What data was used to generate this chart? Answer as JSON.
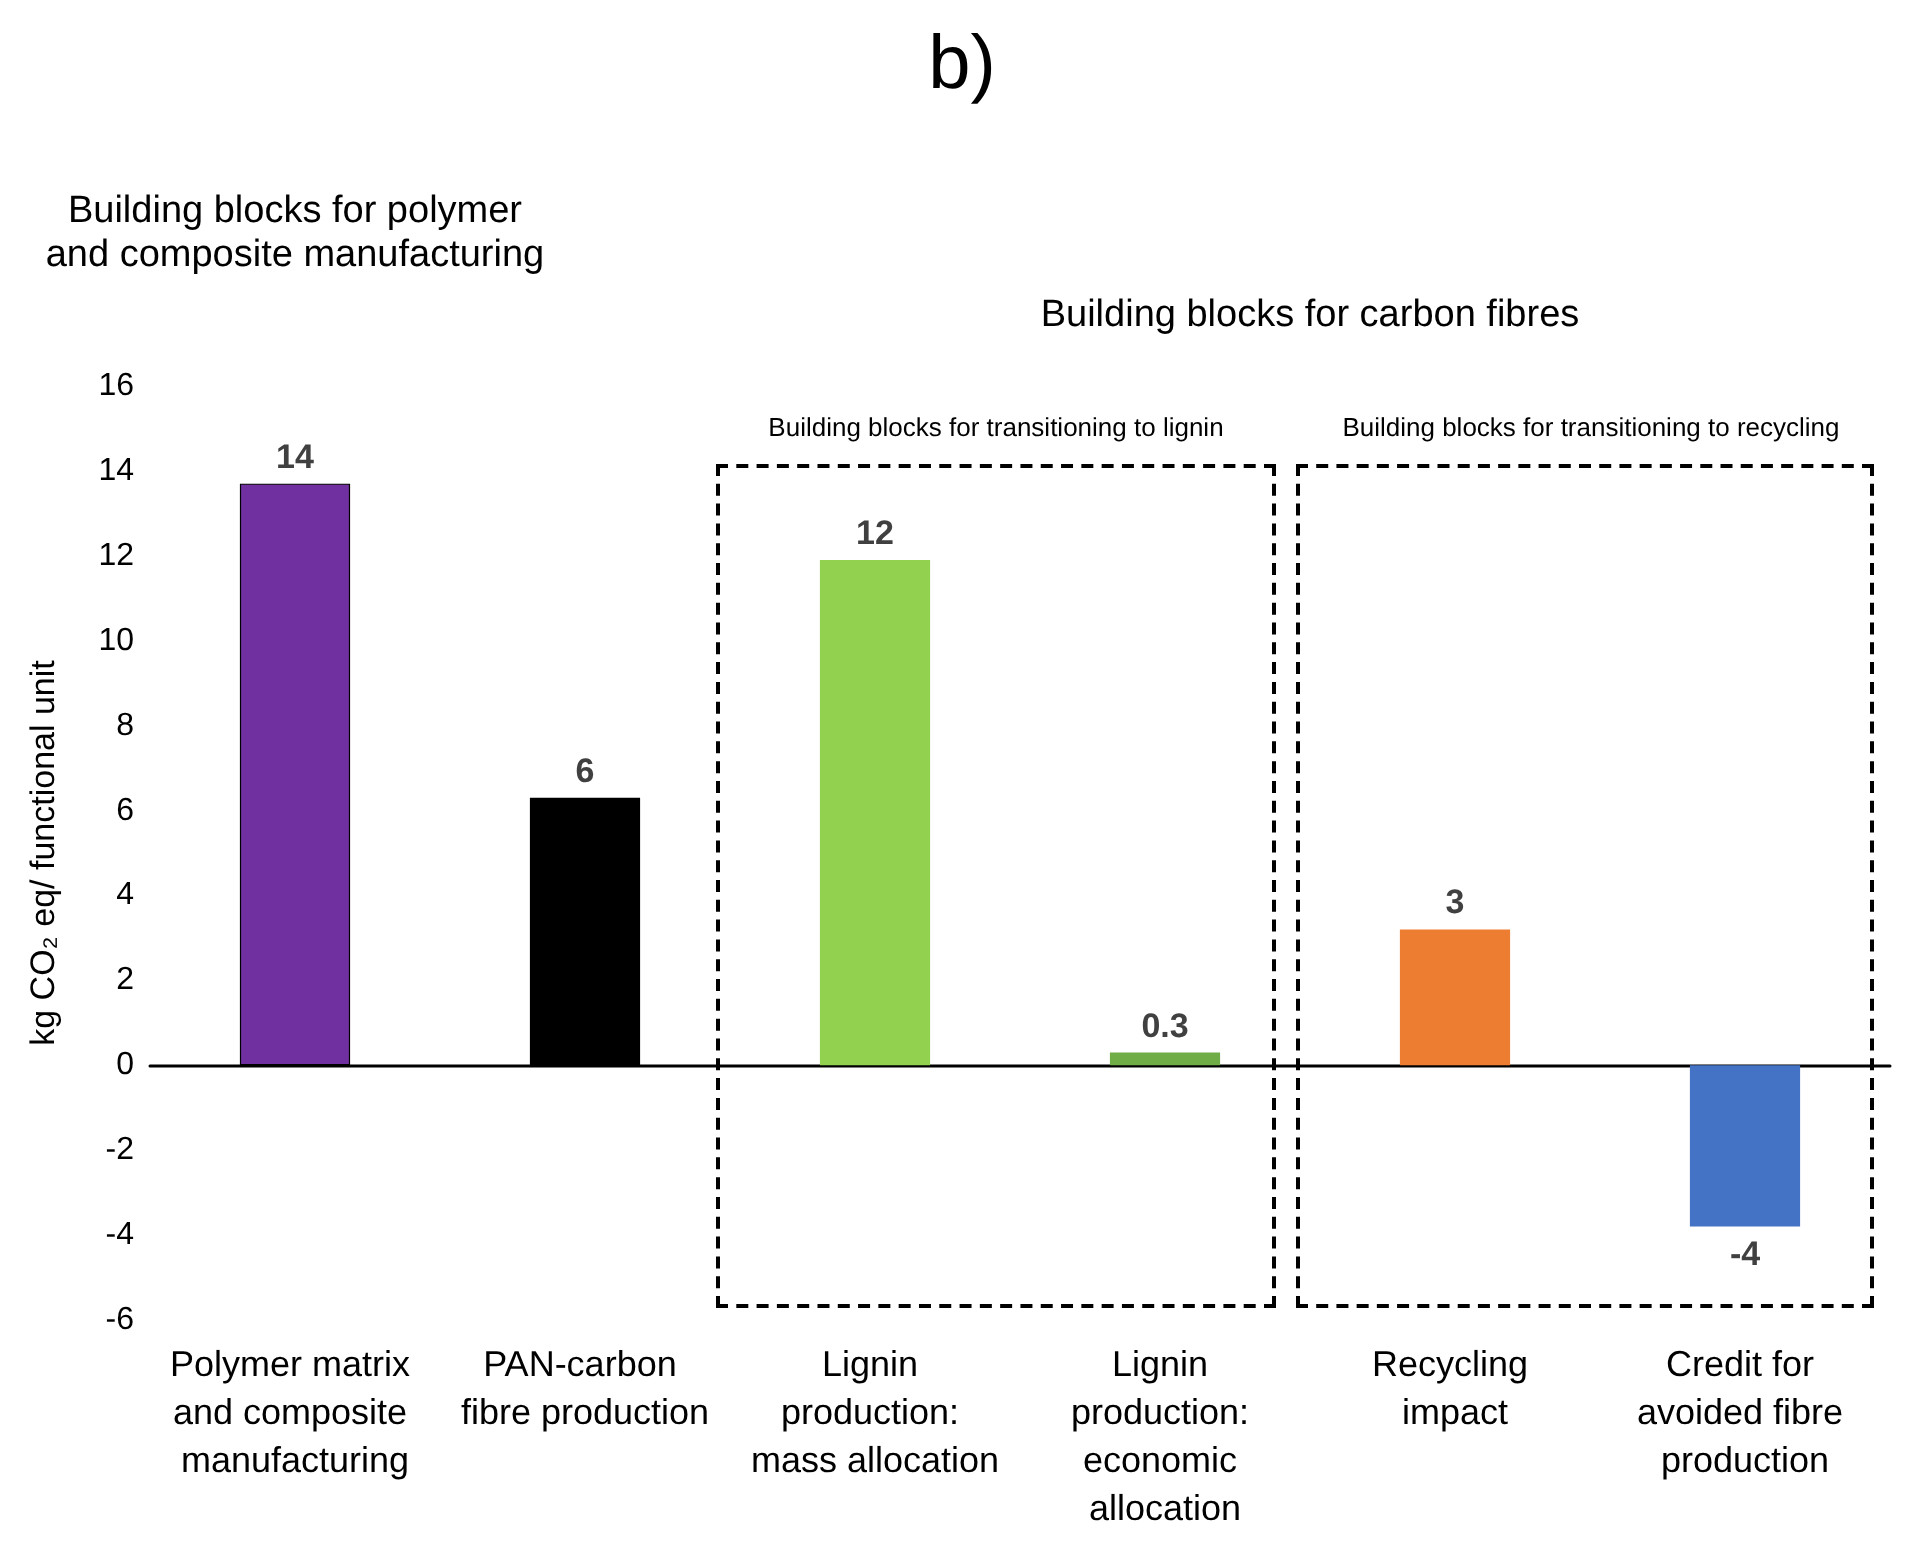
{
  "chart_data": {
    "type": "bar",
    "title": "b)",
    "ylabel": "kg CO₂ eq/ functional unit",
    "categories": [
      "Polymer matrix and composite manufacturing",
      "PAN-carbon fibre production",
      "Lignin production: mass allocation",
      "Lignin production: economic allocation",
      "Recycling impact",
      "Credit for avoided fibre production"
    ],
    "values": [
      13.7,
      6.3,
      11.9,
      0.3,
      3.2,
      -3.8
    ],
    "value_labels": [
      "14",
      "6",
      "12",
      "0.3",
      "3",
      "-4"
    ],
    "colors": [
      "#7030a0",
      "#000000",
      "#92d050",
      "#70ad47",
      "#ed7d31",
      "#4472c4"
    ],
    "ylim": [
      -6,
      16
    ],
    "yticks": [
      -6,
      -4,
      -2,
      0,
      2,
      4,
      6,
      8,
      10,
      12,
      14,
      16
    ],
    "annotations": [
      "Building blocks for polymer and composite manufacturing",
      "Building blocks for carbon fibres",
      "Building blocks for transitioning to lignin",
      "Building blocks for transitioning to recycling"
    ]
  }
}
